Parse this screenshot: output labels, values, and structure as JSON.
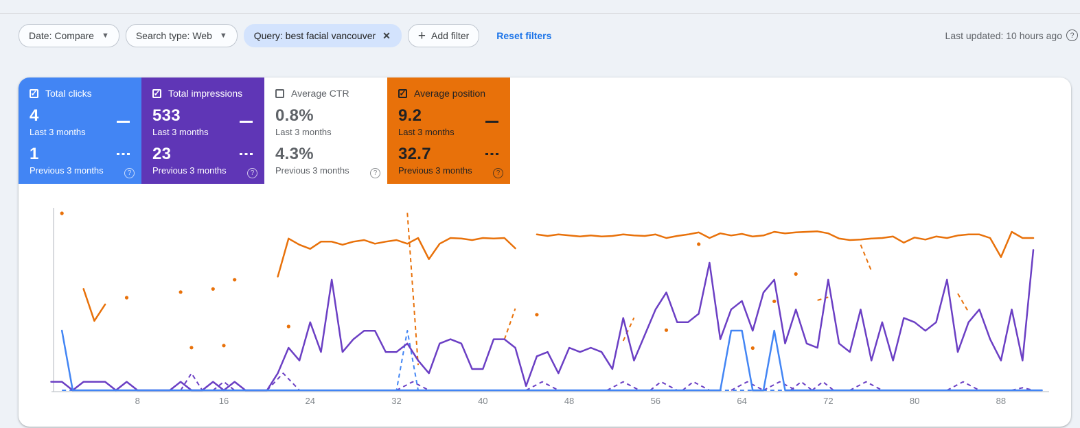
{
  "header": {
    "filters": [
      {
        "label": "Date: Compare",
        "type": "dropdown"
      },
      {
        "label": "Search type: Web",
        "type": "dropdown"
      },
      {
        "label": "Query: best facial vancouver",
        "type": "removable"
      },
      {
        "label": "Add filter",
        "type": "add"
      }
    ],
    "reset_label": "Reset filters",
    "last_updated": "Last updated: 10 hours ago",
    "help_glyph": "?",
    "accent_link_color": "#1A73E8",
    "selected_chip_bg": "#D3E3FD"
  },
  "metric_cards": [
    {
      "label": "Total clicks",
      "checked": true,
      "color": "#4285F4",
      "text_color": "#FFFFFF",
      "value_current": "4",
      "period_current": "Last 3 months",
      "value_previous": "1",
      "period_previous": "Previous 3 months",
      "help_glyph": "?"
    },
    {
      "label": "Total impressions",
      "checked": true,
      "color": "#5F36B6",
      "text_color": "#FFFFFF",
      "value_current": "533",
      "period_current": "Last 3 months",
      "value_previous": "23",
      "period_previous": "Previous 3 months",
      "help_glyph": "?"
    },
    {
      "label": "Average CTR",
      "checked": false,
      "color": "#FFFFFF",
      "text_color": "#5F6368",
      "value_current": "0.8%",
      "period_current": "Last 3 months",
      "value_previous": "4.3%",
      "period_previous": "Previous 3 months",
      "help_glyph": "?"
    },
    {
      "label": "Average position",
      "checked": true,
      "color": "#E8710A",
      "text_color": "#202124",
      "value_current": "9.2",
      "period_current": "Last 3 months",
      "value_previous": "32.7",
      "period_previous": "Previous 3 months",
      "help_glyph": "?"
    }
  ],
  "chart_data": {
    "type": "line",
    "x_ticks": [
      8,
      16,
      24,
      32,
      40,
      48,
      56,
      64,
      72,
      80,
      88
    ],
    "x_range": [
      0,
      92
    ],
    "x_unit": "days",
    "grid": false,
    "legend_position": "metric-cards",
    "y_axes": {
      "clicks": {
        "min": 0,
        "max_visible": 1
      },
      "impressions": {
        "min": 0,
        "peak": 16.5
      },
      "position": {
        "inverted": true,
        "best_at_top": 4,
        "worst_visible": 34.5
      }
    },
    "series": [
      {
        "name": "Impressions - Previous 3 months",
        "metric": "impressions",
        "style": "dashed",
        "color": "#6B3FC4",
        "segments": [
          [
            [
              12,
              0
            ],
            [
              13,
              2
            ],
            [
              14,
              0
            ]
          ],
          [
            [
              15,
              0
            ],
            [
              16,
              1
            ],
            [
              17,
              0
            ]
          ],
          [
            [
              20,
              0
            ],
            [
              21.5,
              2
            ],
            [
              23,
              0
            ]
          ],
          [
            [
              32,
              0
            ],
            [
              33.5,
              1
            ],
            [
              35,
              0
            ]
          ],
          [
            [
              44,
              0
            ],
            [
              45.5,
              1
            ],
            [
              47,
              0
            ]
          ],
          [
            [
              51.5,
              0
            ],
            [
              53,
              1
            ],
            [
              54.5,
              0
            ]
          ],
          [
            [
              55.5,
              0
            ],
            [
              56.5,
              1
            ],
            [
              58,
              0
            ]
          ],
          [
            [
              58.5,
              0
            ],
            [
              59.5,
              1
            ],
            [
              61,
              0
            ]
          ],
          [
            [
              63,
              0
            ],
            [
              64.5,
              1
            ],
            [
              66,
              0
            ]
          ],
          [
            [
              66,
              0
            ],
            [
              67.5,
              1
            ],
            [
              69,
              0
            ]
          ],
          [
            [
              68.5,
              0
            ],
            [
              69.5,
              1
            ],
            [
              70.5,
              0
            ]
          ],
          [
            [
              70.5,
              0
            ],
            [
              71.5,
              1
            ],
            [
              72.5,
              0
            ]
          ],
          [
            [
              74,
              0
            ],
            [
              75.5,
              1
            ],
            [
              77,
              0
            ]
          ],
          [
            [
              83,
              0
            ],
            [
              84.5,
              1
            ],
            [
              86,
              0
            ]
          ],
          [
            [
              89,
              0
            ],
            [
              90,
              0.3
            ],
            [
              91,
              0
            ]
          ]
        ]
      },
      {
        "name": "Clicks - Previous 3 months",
        "metric": "clicks",
        "style": "dashed",
        "color": "#4285F4",
        "segments": [
          [
            [
              1,
              0
            ],
            [
              32,
              0
            ],
            [
              33,
              1
            ],
            [
              34,
              0
            ],
            [
              91,
              0
            ]
          ]
        ]
      },
      {
        "name": "Average position - Previous 3 months",
        "metric": "position",
        "style": "dashed",
        "color": "#E8710A",
        "segments": [
          [
            [
              33,
              4.7
            ],
            [
              34,
              34.3
            ]
          ],
          [
            [
              42,
              29.3
            ],
            [
              43,
              23.3
            ]
          ],
          [
            [
              53,
              29.6
            ],
            [
              54,
              25.1
            ]
          ],
          [
            [
              71,
              21.7
            ],
            [
              72,
              21.1
            ]
          ],
          [
            [
              75,
              10.9
            ],
            [
              76,
              16.0
            ]
          ],
          [
            [
              84,
              20.4
            ],
            [
              85,
              24.0
            ]
          ]
        ],
        "dots": [
          [
            1,
            4.8
          ],
          [
            7,
            21.2
          ],
          [
            12,
            20.1
          ],
          [
            13,
            30.9
          ],
          [
            15,
            19.5
          ],
          [
            16,
            30.5
          ],
          [
            17,
            17.7
          ],
          [
            22,
            26.8
          ],
          [
            45,
            24.5
          ],
          [
            57,
            27.5
          ],
          [
            60,
            10.8
          ],
          [
            65,
            31.0
          ],
          [
            67,
            21.9
          ],
          [
            69,
            16.6
          ]
        ]
      },
      {
        "name": "Impressions - Last 3 months",
        "metric": "impressions",
        "style": "solid",
        "color": "#6B3FC4",
        "values": [
          1,
          1,
          0,
          1,
          1,
          1,
          0,
          1,
          0,
          0,
          0,
          0,
          1,
          0,
          0,
          1,
          0,
          1,
          0,
          0,
          0,
          2,
          5,
          3.5,
          8,
          4.5,
          13,
          4.5,
          6,
          7,
          7,
          4.5,
          4.5,
          5.5,
          3.5,
          2,
          5.5,
          6,
          5.5,
          2.5,
          2.5,
          6,
          6,
          5,
          0.5,
          4,
          4.5,
          2,
          5,
          4.5,
          5,
          4.5,
          2.5,
          8.5,
          3.5,
          6.5,
          9.5,
          11.5,
          8,
          8,
          9,
          15,
          6,
          9.5,
          10.5,
          7,
          11.5,
          13,
          5.5,
          9.5,
          5.5,
          5,
          13,
          5.5,
          4.5,
          9.5,
          3.5,
          8,
          3.5,
          8.5,
          8,
          7,
          8,
          13,
          4.5,
          8,
          9.5,
          6,
          3.5,
          9.5,
          3.5,
          16.5
        ]
      },
      {
        "name": "Average position - Last 3 months",
        "metric": "position",
        "style": "solid",
        "color": "#E8710A",
        "segments": [
          [
            [
              3,
              19.5
            ],
            [
              4,
              25.7
            ],
            [
              5,
              22.5
            ]
          ],
          [
            [
              21,
              17.1
            ],
            [
              22,
              9.7
            ],
            [
              23,
              10.9
            ],
            [
              24,
              11.7
            ],
            [
              25,
              10.3
            ],
            [
              26,
              10.3
            ],
            [
              27,
              10.9
            ],
            [
              28,
              10.3
            ],
            [
              29,
              10.0
            ],
            [
              30,
              10.7
            ],
            [
              31,
              10.3
            ],
            [
              32,
              10.0
            ],
            [
              33,
              10.7
            ],
            [
              34,
              9.6
            ],
            [
              35,
              13.7
            ],
            [
              36,
              10.7
            ],
            [
              37,
              9.6
            ],
            [
              38,
              9.7
            ],
            [
              39,
              10.0
            ],
            [
              40,
              9.6
            ],
            [
              41,
              9.7
            ],
            [
              42,
              9.6
            ],
            [
              43,
              11.6
            ]
          ],
          [
            [
              45,
              8.9
            ],
            [
              46,
              9.2
            ],
            [
              47,
              8.9
            ],
            [
              48,
              9.1
            ],
            [
              49,
              9.3
            ],
            [
              50,
              9.1
            ],
            [
              51,
              9.3
            ],
            [
              52,
              9.2
            ],
            [
              53,
              8.9
            ],
            [
              54,
              9.1
            ],
            [
              55,
              9.2
            ],
            [
              56,
              8.9
            ],
            [
              57,
              9.6
            ],
            [
              58,
              9.2
            ],
            [
              59,
              8.9
            ],
            [
              60,
              8.5
            ],
            [
              61,
              9.6
            ],
            [
              62,
              8.7
            ],
            [
              63,
              9.1
            ],
            [
              64,
              8.8
            ],
            [
              65,
              9.3
            ],
            [
              66,
              9.1
            ],
            [
              67,
              8.4
            ],
            [
              68,
              8.7
            ],
            [
              69,
              8.5
            ],
            [
              70,
              8.4
            ],
            [
              71,
              8.3
            ],
            [
              72,
              8.7
            ],
            [
              73,
              9.7
            ],
            [
              74,
              10.0
            ],
            [
              75,
              9.9
            ],
            [
              76,
              9.7
            ],
            [
              77,
              9.6
            ],
            [
              78,
              9.3
            ],
            [
              79,
              10.5
            ],
            [
              80,
              9.5
            ],
            [
              81,
              9.9
            ],
            [
              82,
              9.3
            ],
            [
              83,
              9.6
            ],
            [
              84,
              9.1
            ],
            [
              85,
              8.9
            ],
            [
              86,
              8.9
            ],
            [
              87,
              9.6
            ],
            [
              88,
              13.3
            ],
            [
              89,
              8.4
            ],
            [
              90,
              9.6
            ],
            [
              91,
              9.6
            ]
          ]
        ]
      },
      {
        "name": "Clicks - Last 3 months",
        "metric": "clicks",
        "style": "solid",
        "color": "#4285F4",
        "segments": [
          [
            [
              1,
              1
            ],
            [
              2,
              0
            ],
            [
              62,
              0
            ],
            [
              63,
              1
            ],
            [
              64,
              1
            ],
            [
              65,
              0
            ],
            [
              66,
              0
            ],
            [
              67,
              1
            ],
            [
              68,
              0
            ],
            [
              91.8,
              0
            ]
          ]
        ]
      }
    ]
  }
}
